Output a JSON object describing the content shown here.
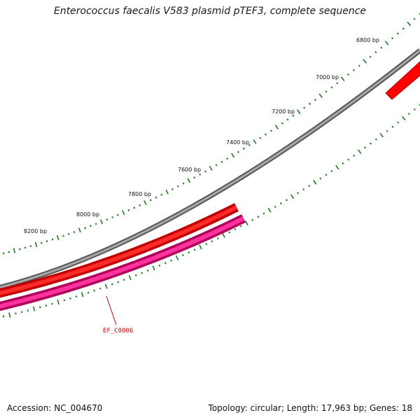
{
  "title": "Enterococcus faecalis V583 plasmid pTEF3, complete sequence",
  "footer": {
    "accession": "Accession: NC_004670",
    "summary": "Topology: circular; Length: 17,963 bp; Genes: 18"
  },
  "map": {
    "tick_labels": [
      "8200 bp",
      "8000 bp",
      "7800 bp",
      "7600 bp",
      "7400 bp",
      "7200 bp",
      "7000 bp",
      "6800 bp"
    ],
    "backbone_color": "#808080",
    "forward_gene_color": "#ff0000",
    "reverse_gene_color": "#ff1493",
    "tick_color": "#1f7a1f",
    "gene_labels": [
      {
        "name": "EF_C0006",
        "color": "#cc0000"
      }
    ]
  }
}
